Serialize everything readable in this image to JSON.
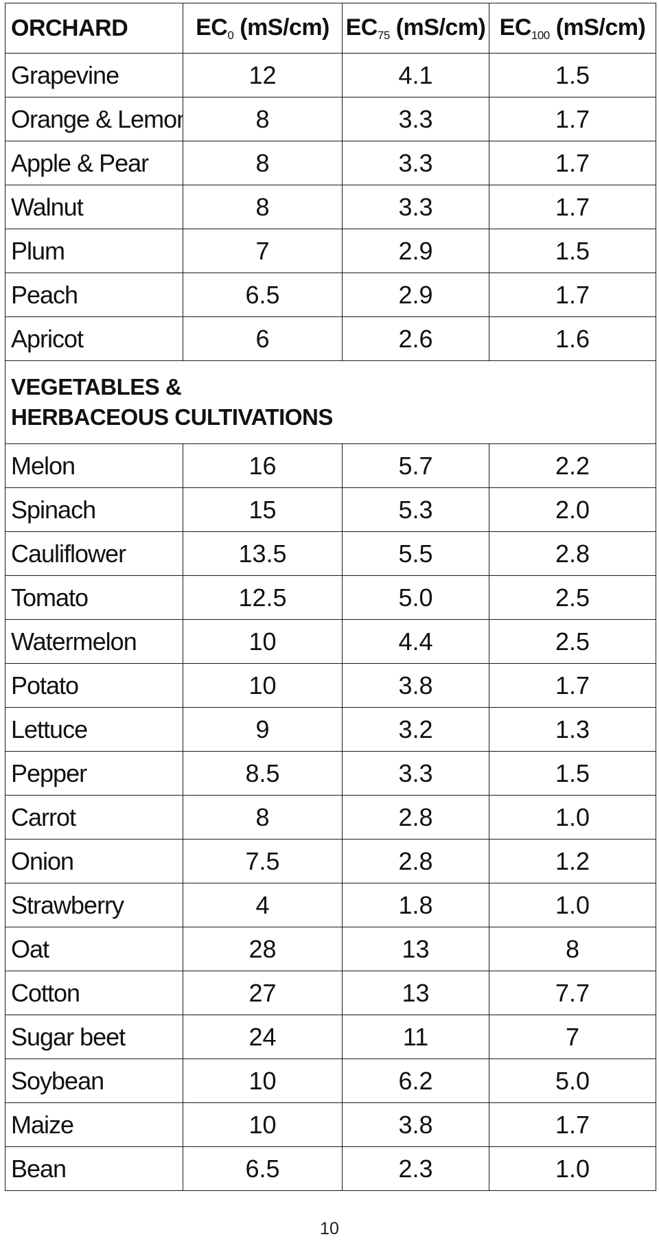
{
  "header": {
    "col0": "ORCHARD",
    "col1": {
      "base": "EC",
      "sub": "0",
      "unit": " (mS/cm)"
    },
    "col2": {
      "base": "EC",
      "sub": "75",
      "unit": " (mS/cm)"
    },
    "col3": {
      "base": "EC",
      "sub": "100",
      "unit": " (mS/cm)"
    }
  },
  "orchard_rows": [
    {
      "name": "Grapevine",
      "ec0": "12",
      "ec75": "4.1",
      "ec100": "1.5"
    },
    {
      "name": "Orange & Lemon",
      "ec0": "8",
      "ec75": "3.3",
      "ec100": "1.7"
    },
    {
      "name": "Apple & Pear",
      "ec0": "8",
      "ec75": "3.3",
      "ec100": "1.7"
    },
    {
      "name": "Walnut",
      "ec0": "8",
      "ec75": "3.3",
      "ec100": "1.7"
    },
    {
      "name": "Plum",
      "ec0": "7",
      "ec75": "2.9",
      "ec100": "1.5"
    },
    {
      "name": "Peach",
      "ec0": "6.5",
      "ec75": "2.9",
      "ec100": "1.7"
    },
    {
      "name": "Apricot",
      "ec0": "6",
      "ec75": "2.6",
      "ec100": "1.6"
    }
  ],
  "section_title": {
    "line1": "VEGETABLES &",
    "line2": "HERBACEOUS CULTIVATIONS"
  },
  "vegetable_rows": [
    {
      "name": "Melon",
      "ec0": "16",
      "ec75": "5.7",
      "ec100": "2.2"
    },
    {
      "name": "Spinach",
      "ec0": "15",
      "ec75": "5.3",
      "ec100": "2.0"
    },
    {
      "name": "Cauliflower",
      "ec0": "13.5",
      "ec75": "5.5",
      "ec100": "2.8"
    },
    {
      "name": "Tomato",
      "ec0": "12.5",
      "ec75": "5.0",
      "ec100": "2.5"
    },
    {
      "name": "Watermelon",
      "ec0": "10",
      "ec75": "4.4",
      "ec100": "2.5"
    },
    {
      "name": "Potato",
      "ec0": "10",
      "ec75": "3.8",
      "ec100": "1.7"
    },
    {
      "name": "Lettuce",
      "ec0": "9",
      "ec75": "3.2",
      "ec100": "1.3"
    },
    {
      "name": "Pepper",
      "ec0": "8.5",
      "ec75": "3.3",
      "ec100": "1.5"
    },
    {
      "name": "Carrot",
      "ec0": "8",
      "ec75": "2.8",
      "ec100": "1.0"
    },
    {
      "name": "Onion",
      "ec0": "7.5",
      "ec75": "2.8",
      "ec100": "1.2"
    },
    {
      "name": "Strawberry",
      "ec0": "4",
      "ec75": "1.8",
      "ec100": "1.0"
    },
    {
      "name": "Oat",
      "ec0": "28",
      "ec75": "13",
      "ec100": "8"
    },
    {
      "name": "Cotton",
      "ec0": "27",
      "ec75": "13",
      "ec100": "7.7"
    },
    {
      "name": "Sugar beet",
      "ec0": "24",
      "ec75": "11",
      "ec100": "7"
    },
    {
      "name": "Soybean",
      "ec0": "10",
      "ec75": "6.2",
      "ec100": "5.0"
    },
    {
      "name": "Maize",
      "ec0": "10",
      "ec75": "3.8",
      "ec100": "1.7"
    },
    {
      "name": "Bean",
      "ec0": "6.5",
      "ec75": "2.3",
      "ec100": "1.0"
    }
  ],
  "page_number": "10"
}
